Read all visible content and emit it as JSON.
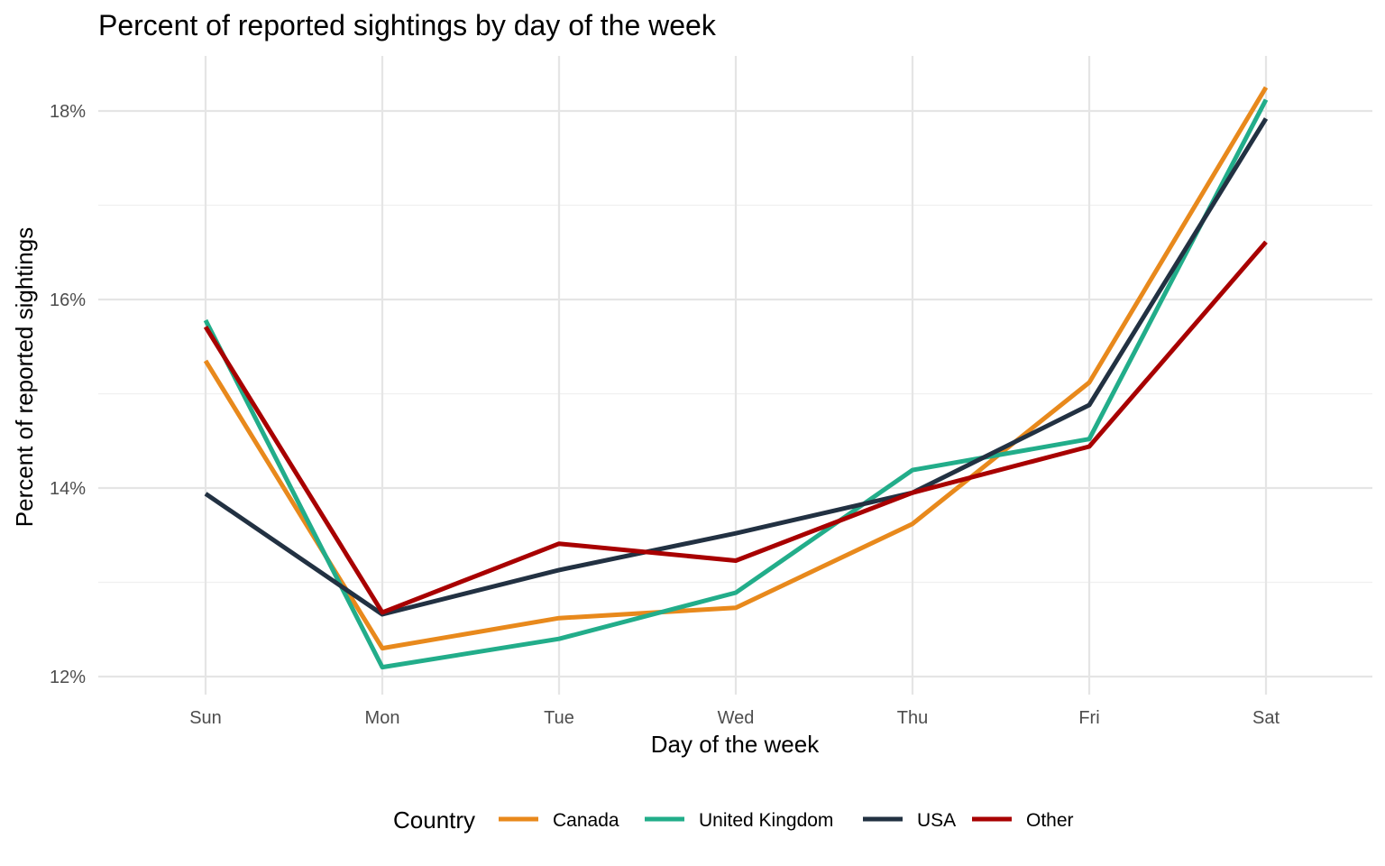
{
  "chart_data": {
    "type": "line",
    "title": "Percent of reported sightings by day of the week",
    "xlabel": "Day of the week",
    "ylabel": "Percent of reported sightings",
    "categories": [
      "Sun",
      "Mon",
      "Tue",
      "Wed",
      "Thu",
      "Fri",
      "Sat"
    ],
    "ylim": [
      11.9,
      18.6
    ],
    "y_ticks": [
      12,
      14,
      16,
      18
    ],
    "y_tick_labels": [
      "12%",
      "14%",
      "16%",
      "18%"
    ],
    "grid": true,
    "legend": {
      "title": "Country",
      "placement": "bottom"
    },
    "series": [
      {
        "name": "Canada",
        "color": "#E8891C",
        "values": [
          15.35,
          12.3,
          12.62,
          12.73,
          13.62,
          15.12,
          18.25
        ]
      },
      {
        "name": "United Kingdom",
        "color": "#22AD8A",
        "values": [
          15.78,
          12.1,
          12.4,
          12.89,
          14.19,
          14.52,
          18.12
        ]
      },
      {
        "name": "USA",
        "color": "#223142",
        "values": [
          13.94,
          12.66,
          13.13,
          13.52,
          13.95,
          14.88,
          17.92
        ]
      },
      {
        "name": "Other",
        "color": "#A80000",
        "values": [
          15.71,
          12.68,
          13.41,
          13.23,
          13.95,
          14.44,
          16.61
        ]
      }
    ]
  }
}
